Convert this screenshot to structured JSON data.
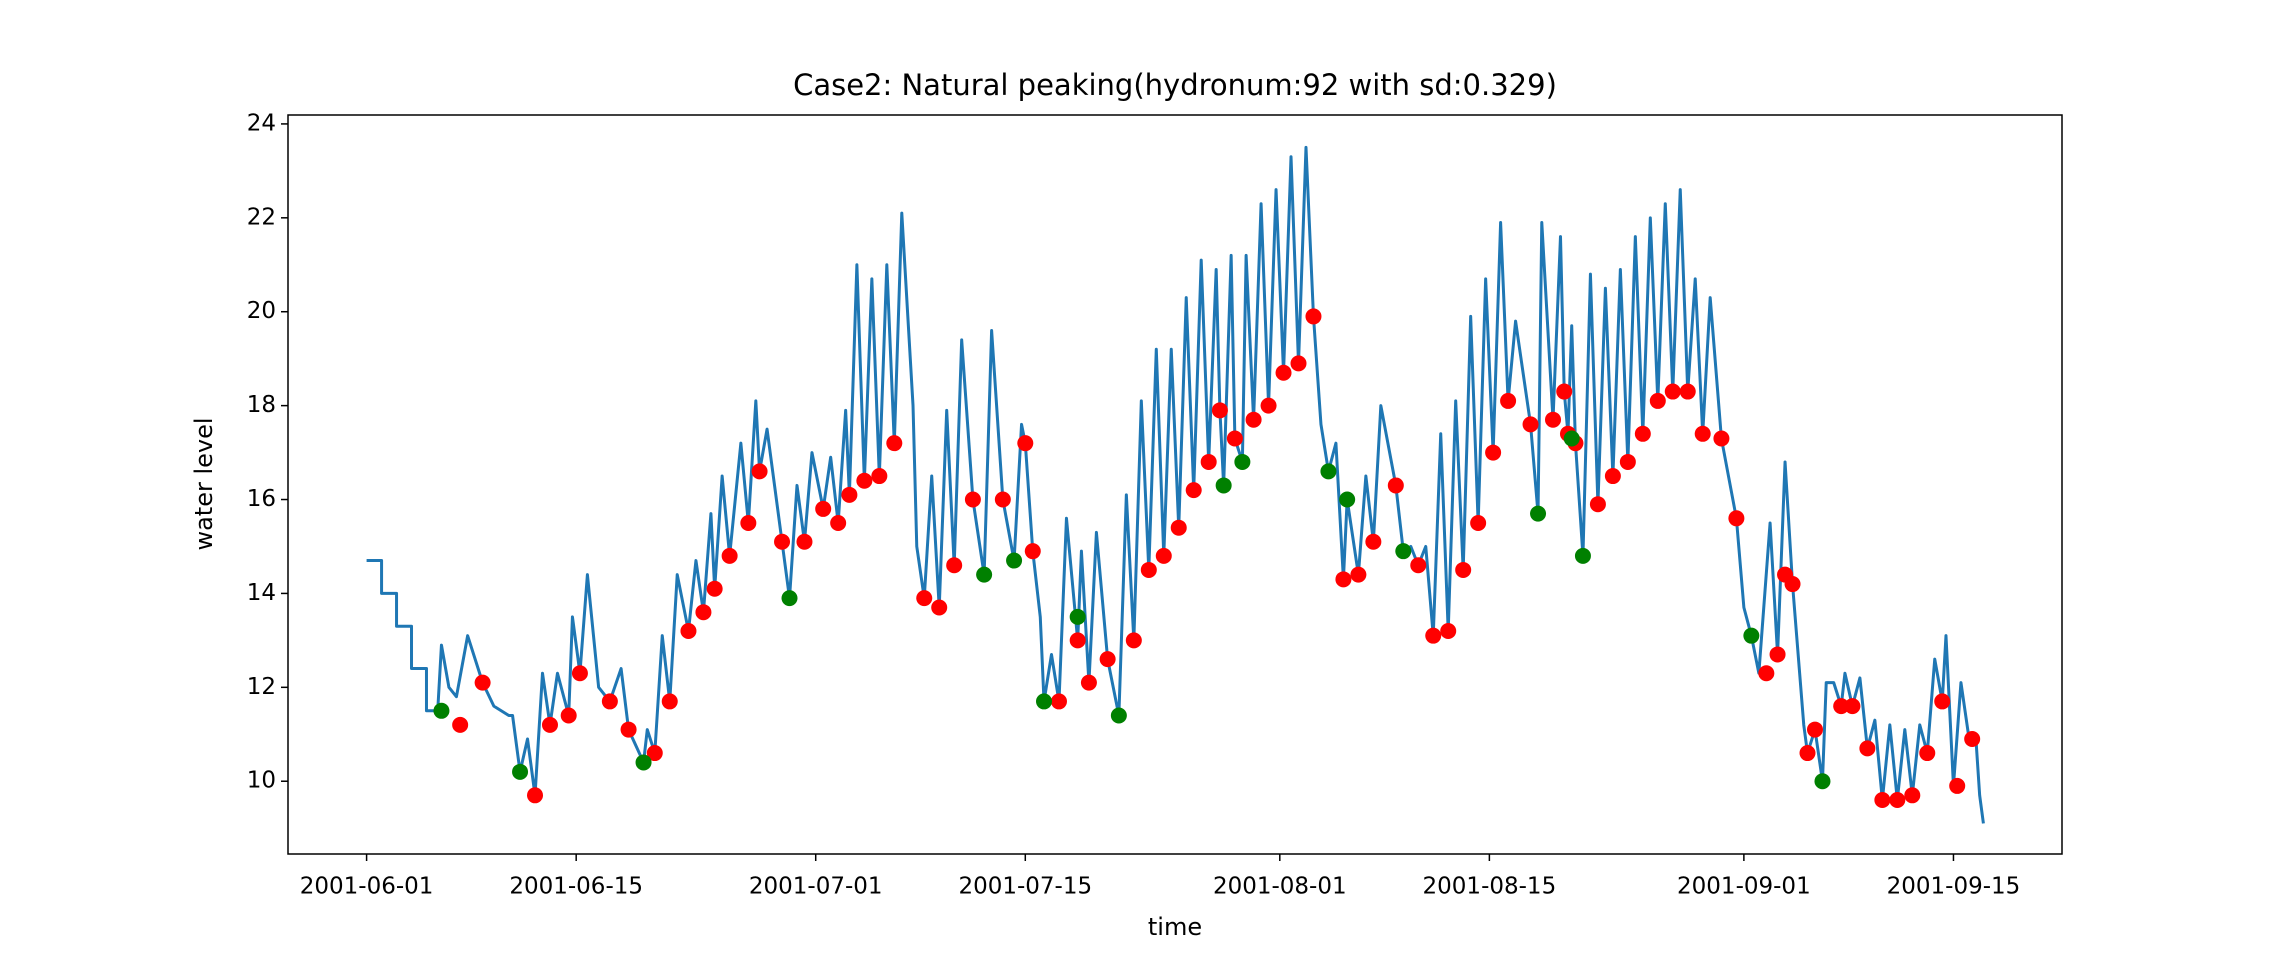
{
  "chart_data": {
    "type": "line",
    "title": "Case2: Natural peaking(hydronum:92 with sd:0.329)",
    "x_label": "time",
    "y_label": "water level",
    "xlim": [
      "2001-05-26 18:00",
      "2001-09-22 06:00"
    ],
    "xticks": [
      "2001-06-01",
      "2001-06-15",
      "2001-07-01",
      "2001-07-15",
      "2001-08-01",
      "2001-08-15",
      "2001-09-01",
      "2001-09-15"
    ],
    "ylim": [
      8.45,
      24.19
    ],
    "yticks": [
      10,
      12,
      14,
      16,
      18,
      20,
      22,
      24
    ],
    "series": [
      {
        "type": "line",
        "color": "#1f77b4",
        "x": [
          "2001-06-01 00:00",
          "2001-06-02 00:00",
          "2001-06-02 00:00",
          "2001-06-03 00:00",
          "2001-06-03 00:00",
          "2001-06-04 00:00",
          "2001-06-04 00:00",
          "2001-06-05 00:00",
          "2001-06-05 00:00",
          "2001-06-05 18:00",
          "2001-06-06 00:00",
          "2001-06-06 12:00",
          "2001-06-07 00:00",
          "2001-06-07 18:00",
          "2001-06-08 18:00",
          "2001-06-09 12:00",
          "2001-06-10 12:00",
          "2001-06-10 18:00",
          "2001-06-11 06:00",
          "2001-06-11 18:00",
          "2001-06-12 06:00",
          "2001-06-12 18:00",
          "2001-06-13 06:00",
          "2001-06-13 18:00",
          "2001-06-14 12:00",
          "2001-06-14 18:00",
          "2001-06-15 06:00",
          "2001-06-15 18:00",
          "2001-06-16 12:00",
          "2001-06-17 06:00",
          "2001-06-18 00:00",
          "2001-06-18 12:00",
          "2001-06-19 12:00",
          "2001-06-19 18:00",
          "2001-06-20 06:00",
          "2001-06-20 18:00",
          "2001-06-21 06:00",
          "2001-06-21 18:00",
          "2001-06-22 12:00",
          "2001-06-23 00:00",
          "2001-06-23 12:00",
          "2001-06-24 00:00",
          "2001-06-24 06:00",
          "2001-06-24 18:00",
          "2001-06-25 06:00",
          "2001-06-26 00:00",
          "2001-06-26 12:00",
          "2001-06-27 00:00",
          "2001-06-27 06:00",
          "2001-06-27 18:00",
          "2001-06-28 18:00",
          "2001-06-29 06:00",
          "2001-06-29 18:00",
          "2001-06-30 06:00",
          "2001-06-30 18:00",
          "2001-07-01 12:00",
          "2001-07-02 00:00",
          "2001-07-02 12:00",
          "2001-07-03 00:00",
          "2001-07-03 06:00",
          "2001-07-03 18:00",
          "2001-07-04 06:00",
          "2001-07-04 18:00",
          "2001-07-05 06:00",
          "2001-07-05 18:00",
          "2001-07-06 06:00",
          "2001-07-06 18:00",
          "2001-07-07 12:00",
          "2001-07-07 18:00",
          "2001-07-08 06:00",
          "2001-07-08 18:00",
          "2001-07-09 06:00",
          "2001-07-09 18:00",
          "2001-07-10 06:00",
          "2001-07-10 18:00",
          "2001-07-11 12:00",
          "2001-07-12 06:00",
          "2001-07-12 18:00",
          "2001-07-13 12:00",
          "2001-07-14 06:00",
          "2001-07-14 18:00",
          "2001-07-15 00:00",
          "2001-07-15 12:00",
          "2001-07-16 00:00",
          "2001-07-16 06:00",
          "2001-07-16 18:00",
          "2001-07-17 06:00",
          "2001-07-17 18:00",
          "2001-07-18 12:00",
          "2001-07-18 18:00",
          "2001-07-19 06:00",
          "2001-07-19 18:00",
          "2001-07-20 12:00",
          "2001-07-21 06:00",
          "2001-07-21 18:00",
          "2001-07-22 06:00",
          "2001-07-22 18:00",
          "2001-07-23 06:00",
          "2001-07-23 18:00",
          "2001-07-24 06:00",
          "2001-07-24 18:00",
          "2001-07-25 06:00",
          "2001-07-25 18:00",
          "2001-07-26 06:00",
          "2001-07-26 18:00",
          "2001-07-27 06:00",
          "2001-07-27 18:00",
          "2001-07-28 00:00",
          "2001-07-28 06:00",
          "2001-07-28 18:00",
          "2001-07-29 00:00",
          "2001-07-29 12:00",
          "2001-07-29 18:00",
          "2001-07-30 06:00",
          "2001-07-30 18:00",
          "2001-07-31 06:00",
          "2001-07-31 18:00",
          "2001-08-01 06:00",
          "2001-08-01 18:00",
          "2001-08-02 06:00",
          "2001-08-02 18:00",
          "2001-08-03 06:00",
          "2001-08-03 18:00",
          "2001-08-04 06:00",
          "2001-08-04 18:00",
          "2001-08-05 06:00",
          "2001-08-05 12:00",
          "2001-08-06 06:00",
          "2001-08-06 18:00",
          "2001-08-07 06:00",
          "2001-08-07 18:00",
          "2001-08-08 18:00",
          "2001-08-09 06:00",
          "2001-08-09 18:00",
          "2001-08-10 06:00",
          "2001-08-10 18:00",
          "2001-08-11 06:00",
          "2001-08-11 18:00",
          "2001-08-12 06:00",
          "2001-08-12 18:00",
          "2001-08-13 06:00",
          "2001-08-13 18:00",
          "2001-08-14 06:00",
          "2001-08-14 18:00",
          "2001-08-15 06:00",
          "2001-08-15 18:00",
          "2001-08-16 06:00",
          "2001-08-16 18:00",
          "2001-08-17 18:00",
          "2001-08-18 06:00",
          "2001-08-18 12:00",
          "2001-08-19 06:00",
          "2001-08-19 18:00",
          "2001-08-20 00:00",
          "2001-08-20 06:00",
          "2001-08-20 12:00",
          "2001-08-20 18:00",
          "2001-08-21 06:00",
          "2001-08-21 18:00",
          "2001-08-22 06:00",
          "2001-08-22 18:00",
          "2001-08-23 06:00",
          "2001-08-23 18:00",
          "2001-08-24 06:00",
          "2001-08-24 18:00",
          "2001-08-25 06:00",
          "2001-08-25 18:00",
          "2001-08-26 06:00",
          "2001-08-26 18:00",
          "2001-08-27 06:00",
          "2001-08-27 18:00",
          "2001-08-28 06:00",
          "2001-08-28 18:00",
          "2001-08-29 06:00",
          "2001-08-29 18:00",
          "2001-08-30 12:00",
          "2001-08-31 12:00",
          "2001-09-01 00:00",
          "2001-09-01 12:00",
          "2001-09-02 00:00",
          "2001-09-02 18:00",
          "2001-09-03 06:00",
          "2001-09-03 18:00",
          "2001-09-04 06:00",
          "2001-09-05 00:00",
          "2001-09-05 06:00",
          "2001-09-05 18:00",
          "2001-09-06 06:00",
          "2001-09-06 12:00",
          "2001-09-07 00:00",
          "2001-09-07 12:00",
          "2001-09-07 18:00",
          "2001-09-08 06:00",
          "2001-09-08 18:00",
          "2001-09-09 06:00",
          "2001-09-09 18:00",
          "2001-09-10 06:00",
          "2001-09-10 18:00",
          "2001-09-11 06:00",
          "2001-09-11 18:00",
          "2001-09-12 06:00",
          "2001-09-12 18:00",
          "2001-09-13 06:00",
          "2001-09-13 18:00",
          "2001-09-14 06:00",
          "2001-09-14 12:00",
          "2001-09-15 00:00",
          "2001-09-15 12:00",
          "2001-09-16 00:00",
          "2001-09-16 12:00",
          "2001-09-16 18:00",
          "2001-09-17 00:00"
        ],
        "values": [
          14.7,
          14.7,
          14.0,
          14.0,
          13.3,
          13.3,
          12.4,
          12.4,
          11.5,
          11.5,
          12.9,
          12.0,
          11.8,
          13.1,
          12.1,
          11.6,
          11.4,
          11.4,
          10.2,
          10.9,
          9.7,
          12.3,
          11.2,
          12.3,
          11.4,
          13.5,
          12.3,
          14.4,
          12.0,
          11.7,
          12.4,
          11.1,
          10.4,
          11.1,
          10.6,
          13.1,
          11.7,
          14.4,
          13.2,
          14.7,
          13.6,
          15.7,
          14.1,
          16.5,
          14.8,
          17.2,
          15.5,
          18.1,
          16.6,
          17.5,
          15.1,
          13.9,
          16.3,
          15.1,
          17.0,
          15.8,
          16.9,
          15.5,
          17.9,
          16.1,
          21.0,
          16.4,
          20.7,
          16.5,
          21.0,
          17.2,
          22.1,
          18.0,
          15.0,
          13.9,
          16.5,
          13.7,
          17.9,
          14.6,
          19.4,
          16.0,
          14.4,
          19.6,
          16.0,
          14.7,
          17.6,
          17.2,
          14.9,
          13.5,
          11.7,
          12.7,
          11.7,
          15.6,
          13.0,
          14.9,
          12.1,
          15.3,
          12.6,
          11.4,
          16.1,
          13.0,
          18.1,
          14.5,
          19.2,
          14.8,
          19.2,
          15.4,
          20.3,
          16.2,
          21.1,
          16.8,
          20.9,
          17.9,
          16.3,
          21.2,
          17.3,
          16.8,
          21.2,
          17.7,
          22.3,
          18.0,
          22.6,
          18.7,
          23.3,
          18.9,
          23.5,
          19.9,
          17.6,
          16.6,
          17.2,
          14.3,
          16.0,
          14.4,
          16.5,
          15.1,
          18.0,
          16.3,
          14.9,
          15.0,
          14.6,
          15.0,
          13.1,
          17.4,
          13.2,
          18.1,
          14.5,
          19.9,
          15.5,
          20.7,
          17.0,
          21.9,
          18.1,
          19.8,
          17.6,
          15.7,
          21.9,
          17.7,
          21.6,
          18.3,
          17.4,
          19.7,
          17.2,
          14.8,
          20.8,
          15.9,
          20.5,
          16.5,
          20.9,
          16.8,
          21.6,
          17.4,
          22.0,
          18.1,
          22.3,
          18.3,
          22.6,
          18.3,
          20.7,
          17.4,
          20.3,
          17.3,
          15.6,
          13.7,
          13.1,
          12.3,
          15.5,
          12.7,
          16.8,
          14.2,
          11.2,
          10.6,
          11.1,
          10.0,
          12.1,
          12.1,
          11.6,
          12.3,
          11.6,
          12.2,
          10.7,
          11.3,
          9.6,
          11.2,
          9.6,
          11.1,
          9.7,
          11.2,
          10.6,
          12.6,
          11.7,
          13.1,
          9.9,
          12.1,
          11.0,
          10.9,
          9.7,
          9.1
        ]
      },
      {
        "type": "scatter",
        "color": "red",
        "x": [
          "2001-06-07 06:00",
          "2001-06-08 18:00",
          "2001-06-12 06:00",
          "2001-06-13 06:00",
          "2001-06-14 12:00",
          "2001-06-15 06:00",
          "2001-06-17 06:00",
          "2001-06-18 12:00",
          "2001-06-20 06:00",
          "2001-06-21 06:00",
          "2001-06-22 12:00",
          "2001-06-23 12:00",
          "2001-06-24 06:00",
          "2001-06-25 06:00",
          "2001-06-26 12:00",
          "2001-06-27 06:00",
          "2001-06-28 18:00",
          "2001-06-30 06:00",
          "2001-07-01 12:00",
          "2001-07-02 12:00",
          "2001-07-03 06:00",
          "2001-07-04 06:00",
          "2001-07-05 06:00",
          "2001-07-06 06:00",
          "2001-07-08 06:00",
          "2001-07-09 06:00",
          "2001-07-10 06:00",
          "2001-07-11 12:00",
          "2001-07-13 12:00",
          "2001-07-15 00:00",
          "2001-07-15 12:00",
          "2001-07-17 06:00",
          "2001-07-18 12:00",
          "2001-07-19 06:00",
          "2001-07-20 12:00",
          "2001-07-22 06:00",
          "2001-07-23 06:00",
          "2001-07-24 06:00",
          "2001-07-25 06:00",
          "2001-07-26 06:00",
          "2001-07-27 06:00",
          "2001-07-28 00:00",
          "2001-07-29 00:00",
          "2001-07-30 06:00",
          "2001-07-31 06:00",
          "2001-08-01 06:00",
          "2001-08-02 06:00",
          "2001-08-03 06:00",
          "2001-08-05 06:00",
          "2001-08-06 06:00",
          "2001-08-07 06:00",
          "2001-08-08 18:00",
          "2001-08-10 06:00",
          "2001-08-11 06:00",
          "2001-08-12 06:00",
          "2001-08-13 06:00",
          "2001-08-14 06:00",
          "2001-08-15 06:00",
          "2001-08-16 06:00",
          "2001-08-17 18:00",
          "2001-08-19 06:00",
          "2001-08-20 00:00",
          "2001-08-20 06:00",
          "2001-08-20 18:00",
          "2001-08-22 06:00",
          "2001-08-23 06:00",
          "2001-08-24 06:00",
          "2001-08-25 06:00",
          "2001-08-26 06:00",
          "2001-08-27 06:00",
          "2001-08-28 06:00",
          "2001-08-29 06:00",
          "2001-08-30 12:00",
          "2001-08-31 12:00",
          "2001-09-02 12:00",
          "2001-09-03 06:00",
          "2001-09-03 18:00",
          "2001-09-04 06:00",
          "2001-09-05 06:00",
          "2001-09-05 18:00",
          "2001-09-07 12:00",
          "2001-09-08 06:00",
          "2001-09-09 06:00",
          "2001-09-10 06:00",
          "2001-09-11 06:00",
          "2001-09-12 06:00",
          "2001-09-13 06:00",
          "2001-09-14 06:00",
          "2001-09-15 06:00",
          "2001-09-16 06:00"
        ],
        "values": [
          11.2,
          12.1,
          9.7,
          11.2,
          11.4,
          12.3,
          11.7,
          11.1,
          10.6,
          11.7,
          13.2,
          13.6,
          14.1,
          14.8,
          15.5,
          16.6,
          15.1,
          15.1,
          15.8,
          15.5,
          16.1,
          16.4,
          16.5,
          17.2,
          13.9,
          13.7,
          14.6,
          16.0,
          16.0,
          17.2,
          14.9,
          11.7,
          13.0,
          12.1,
          12.6,
          13.0,
          14.5,
          14.8,
          15.4,
          16.2,
          16.8,
          17.9,
          17.3,
          17.7,
          18.0,
          18.7,
          18.9,
          19.9,
          14.3,
          14.4,
          15.1,
          16.3,
          14.6,
          13.1,
          13.2,
          14.5,
          15.5,
          17.0,
          18.1,
          17.6,
          17.7,
          18.3,
          17.4,
          17.2,
          15.9,
          16.5,
          16.8,
          17.4,
          18.1,
          18.3,
          18.3,
          17.4,
          17.3,
          15.6,
          12.3,
          12.7,
          14.4,
          14.2,
          10.6,
          11.1,
          11.6,
          11.6,
          10.7,
          9.6,
          9.6,
          9.7,
          10.6,
          11.7,
          9.9,
          10.9
        ]
      },
      {
        "type": "scatter",
        "color": "green",
        "x": [
          "2001-06-06 00:00",
          "2001-06-11 06:00",
          "2001-06-19 12:00",
          "2001-06-29 06:00",
          "2001-07-12 06:00",
          "2001-07-14 06:00",
          "2001-07-16 06:00",
          "2001-07-18 12:00",
          "2001-07-21 06:00",
          "2001-07-28 06:00",
          "2001-07-29 12:00",
          "2001-08-04 06:00",
          "2001-08-05 12:00",
          "2001-08-09 06:00",
          "2001-08-18 06:00",
          "2001-08-20 12:00",
          "2001-08-21 06:00",
          "2001-09-01 12:00",
          "2001-09-06 06:00"
        ],
        "values": [
          11.5,
          10.2,
          10.4,
          13.9,
          14.4,
          14.7,
          11.7,
          13.5,
          11.4,
          16.3,
          16.8,
          16.6,
          16.0,
          14.9,
          15.7,
          17.3,
          14.8,
          13.1,
          10.0
        ]
      }
    ]
  }
}
